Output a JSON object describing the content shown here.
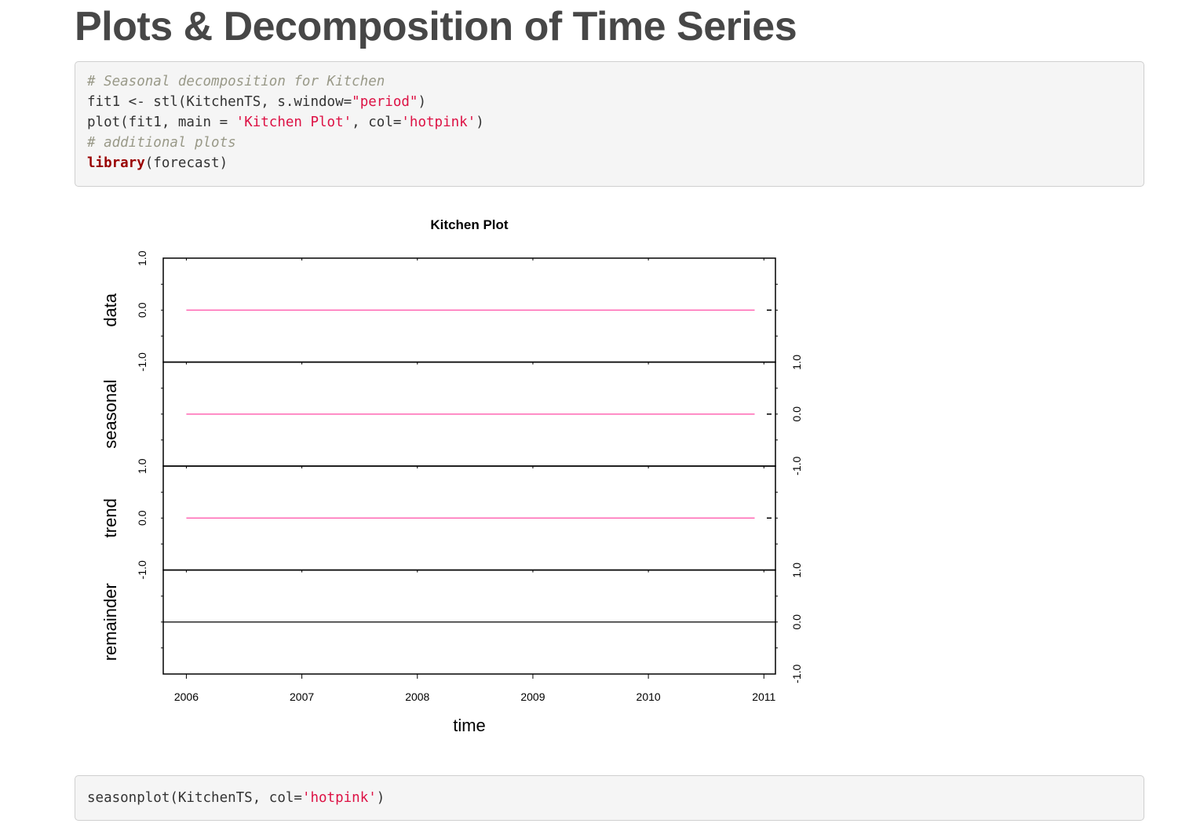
{
  "page": {
    "title": "Plots & Decomposition of Time Series"
  },
  "code_block_1": {
    "lines": [
      [
        {
          "text": "# Seasonal decomposition for Kitchen",
          "type": "comment"
        }
      ],
      [
        {
          "text": "fit1 <- stl(KitchenTS, s.window=",
          "type": "plain"
        },
        {
          "text": "\"period\"",
          "type": "string"
        },
        {
          "text": ")",
          "type": "plain"
        }
      ],
      [
        {
          "text": "plot(fit1, main = ",
          "type": "plain"
        },
        {
          "text": "'Kitchen Plot'",
          "type": "string"
        },
        {
          "text": ", col=",
          "type": "plain"
        },
        {
          "text": "'hotpink'",
          "type": "string"
        },
        {
          "text": ")",
          "type": "plain"
        }
      ],
      [
        {
          "text": "# additional plots",
          "type": "comment"
        }
      ],
      [
        {
          "text": "library",
          "type": "keyword"
        },
        {
          "text": "(forecast)",
          "type": "plain"
        }
      ]
    ]
  },
  "code_block_2": {
    "lines": [
      [
        {
          "text": "seasonplot(KitchenTS, col=",
          "type": "plain"
        },
        {
          "text": "'hotpink'",
          "type": "string"
        },
        {
          "text": ")",
          "type": "plain"
        }
      ]
    ]
  },
  "chart_data": {
    "type": "line",
    "title": "Kitchen Plot",
    "xlabel": "time",
    "x_ticks": [
      "2006",
      "2007",
      "2008",
      "2009",
      "2010",
      "2011"
    ],
    "xlim": [
      2005.8,
      2011.1
    ],
    "line_color": "#ff69b4",
    "panels": [
      {
        "name": "data",
        "ylim": [
          -1.0,
          1.0
        ],
        "y_ticks": [
          "-1.0",
          "0.0",
          "1.0"
        ],
        "axis_side": "left",
        "series": {
          "x": [
            2006.0,
            2010.92
          ],
          "y": [
            0.0,
            0.0
          ]
        },
        "draw_series": true,
        "zero_line": false
      },
      {
        "name": "seasonal",
        "ylim": [
          -1.0,
          1.0
        ],
        "y_ticks": [
          "-1.0",
          "0.0",
          "1.0"
        ],
        "axis_side": "right",
        "series": {
          "x": [
            2006.0,
            2010.92
          ],
          "y": [
            0.0,
            0.0
          ]
        },
        "draw_series": true,
        "zero_line": false
      },
      {
        "name": "trend",
        "ylim": [
          -1.0,
          1.0
        ],
        "y_ticks": [
          "-1.0",
          "0.0",
          "1.0"
        ],
        "axis_side": "left",
        "series": {
          "x": [
            2006.0,
            2010.92
          ],
          "y": [
            0.0,
            0.0
          ]
        },
        "draw_series": true,
        "zero_line": false
      },
      {
        "name": "remainder",
        "ylim": [
          -1.0,
          1.0
        ],
        "y_ticks": [
          "-1.0",
          "0.0",
          "1.0"
        ],
        "axis_side": "right",
        "series": {
          "x": [
            2006.0,
            2010.92
          ],
          "y": [
            0.0,
            0.0
          ]
        },
        "draw_series": false,
        "zero_line": true
      }
    ]
  }
}
